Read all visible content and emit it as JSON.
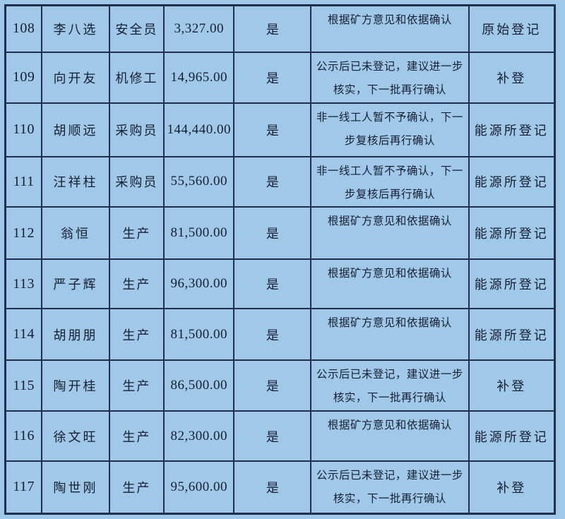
{
  "colors": {
    "page_background": "#a0c8e8",
    "grid_border": "#202f4e",
    "text": "#161f31"
  },
  "table": {
    "rows": [
      {
        "num": "108",
        "name": "李八选",
        "job": "安全员",
        "amount": "3,327.00",
        "confirmed": "是",
        "remark": "根据矿方意见和依据确认",
        "register": "原始登记"
      },
      {
        "num": "109",
        "name": "向开友",
        "job": "机修工",
        "amount": "14,965.00",
        "confirmed": "是",
        "remark": "公示后已未登记，建议进一步\n核实，下一批再行确认",
        "register": "补登"
      },
      {
        "num": "110",
        "name": "胡顺远",
        "job": "采购员",
        "amount": "144,440.00",
        "confirmed": "是",
        "remark": "非一线工人暂不予确认，下一\n步复核后再行确认",
        "register": "能源所登记"
      },
      {
        "num": "111",
        "name": "汪祥柱",
        "job": "采购员",
        "amount": "55,560.00",
        "confirmed": "是",
        "remark": "非一线工人暂不予确认，下一\n步复核后再行确认",
        "register": "能源所登记"
      },
      {
        "num": "112",
        "name": "翁恒",
        "job": "生产",
        "amount": "81,500.00",
        "confirmed": "是",
        "remark": "根据矿方意见和依据确认",
        "register": "能源所登记"
      },
      {
        "num": "113",
        "name": "严子辉",
        "job": "生产",
        "amount": "96,300.00",
        "confirmed": "是",
        "remark": "根据矿方意见和依据确认",
        "register": "能源所登记"
      },
      {
        "num": "114",
        "name": "胡朋朋",
        "job": "生产",
        "amount": "81,500.00",
        "confirmed": "是",
        "remark": "根据矿方意见和依据确认",
        "register": "能源所登记"
      },
      {
        "num": "115",
        "name": "陶开桂",
        "job": "生产",
        "amount": "86,500.00",
        "confirmed": "是",
        "remark": "公示后已未登记，建议进一步\n核实，下一批再行确认",
        "register": "补登"
      },
      {
        "num": "116",
        "name": "徐文旺",
        "job": "生产",
        "amount": "82,300.00",
        "confirmed": "是",
        "remark": "根据矿方意见和依据确认",
        "register": "能源所登记"
      },
      {
        "num": "117",
        "name": "陶世刚",
        "job": "生产",
        "amount": "95,600.00",
        "confirmed": "是",
        "remark": "公示后已未登记，建议进一步\n核实，下一批再行确认",
        "register": "补登"
      }
    ]
  }
}
